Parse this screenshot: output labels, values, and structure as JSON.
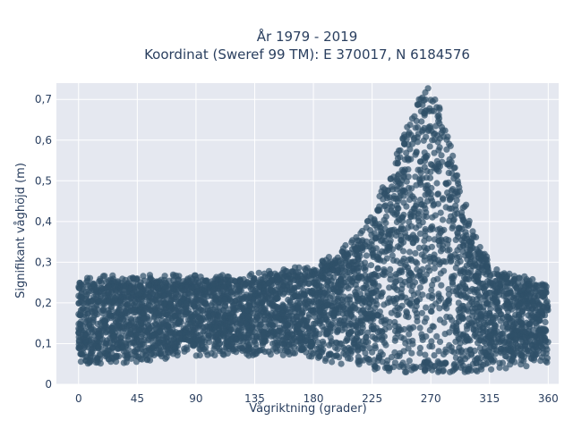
{
  "chart_data": {
    "type": "scatter",
    "title_lines": [
      "År 1979 - 2019",
      "Koordinat (Sweref 99 TM): E 370017, N 6184576"
    ],
    "xlabel": "Vågriktning (grader)",
    "ylabel": "Signifikant våghöjd (m)",
    "xlim": [
      -17,
      368
    ],
    "ylim": [
      0,
      0.74
    ],
    "x_ticks": [
      0,
      45,
      90,
      135,
      180,
      225,
      270,
      315,
      360
    ],
    "x_tick_labels": [
      "0",
      "45",
      "90",
      "135",
      "180",
      "225",
      "270",
      "315",
      "360"
    ],
    "y_ticks": [
      0,
      0.1,
      0.2,
      0.3,
      0.4,
      0.5,
      0.6,
      0.7
    ],
    "y_tick_labels": [
      "0",
      "0,1",
      "0,2",
      "0,3",
      "0,4",
      "0,5",
      "0,6",
      "0,7"
    ],
    "grid": true,
    "background": "#e5e8f0",
    "marker_color": "#2f5068",
    "marker_opacity": 0.7,
    "upper_envelope": [
      {
        "x": 0,
        "y": 0.26
      },
      {
        "x": 30,
        "y": 0.27
      },
      {
        "x": 60,
        "y": 0.27
      },
      {
        "x": 90,
        "y": 0.27
      },
      {
        "x": 120,
        "y": 0.27
      },
      {
        "x": 150,
        "y": 0.28
      },
      {
        "x": 170,
        "y": 0.29
      },
      {
        "x": 185,
        "y": 0.3
      },
      {
        "x": 200,
        "y": 0.33
      },
      {
        "x": 215,
        "y": 0.37
      },
      {
        "x": 225,
        "y": 0.42
      },
      {
        "x": 235,
        "y": 0.5
      },
      {
        "x": 245,
        "y": 0.58
      },
      {
        "x": 255,
        "y": 0.66
      },
      {
        "x": 262,
        "y": 0.71
      },
      {
        "x": 268,
        "y": 0.73
      },
      {
        "x": 275,
        "y": 0.7
      },
      {
        "x": 282,
        "y": 0.63
      },
      {
        "x": 290,
        "y": 0.52
      },
      {
        "x": 300,
        "y": 0.41
      },
      {
        "x": 310,
        "y": 0.33
      },
      {
        "x": 320,
        "y": 0.29
      },
      {
        "x": 335,
        "y": 0.27
      },
      {
        "x": 350,
        "y": 0.26
      },
      {
        "x": 360,
        "y": 0.25
      }
    ],
    "lower_envelope": [
      {
        "x": 0,
        "y": 0.05
      },
      {
        "x": 30,
        "y": 0.05
      },
      {
        "x": 60,
        "y": 0.06
      },
      {
        "x": 90,
        "y": 0.07
      },
      {
        "x": 120,
        "y": 0.07
      },
      {
        "x": 150,
        "y": 0.07
      },
      {
        "x": 180,
        "y": 0.06
      },
      {
        "x": 200,
        "y": 0.05
      },
      {
        "x": 220,
        "y": 0.04
      },
      {
        "x": 240,
        "y": 0.03
      },
      {
        "x": 270,
        "y": 0.03
      },
      {
        "x": 300,
        "y": 0.03
      },
      {
        "x": 330,
        "y": 0.04
      },
      {
        "x": 360,
        "y": 0.05
      }
    ]
  }
}
